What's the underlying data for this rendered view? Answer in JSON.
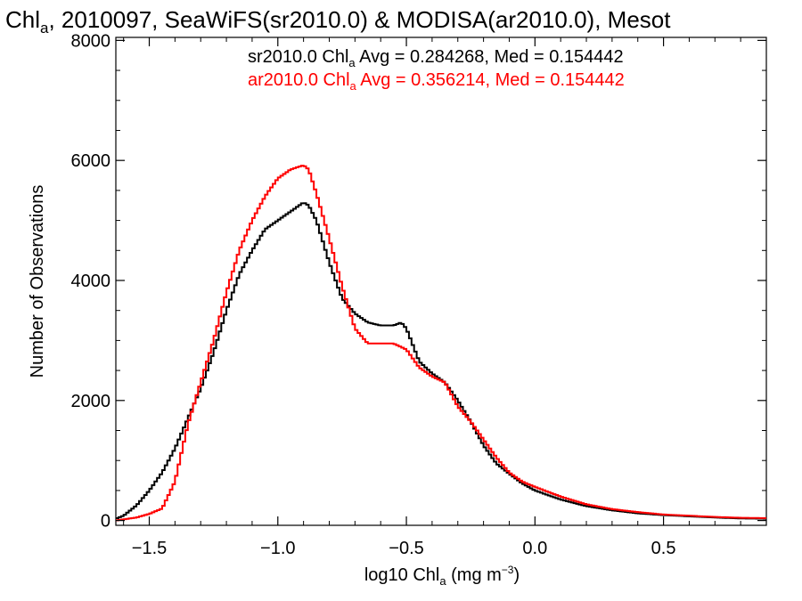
{
  "chart_data": {
    "type": "line",
    "title": {
      "pre": "Chl",
      "sub": "a",
      "post": ", 2010097, SeaWiFS(sr2010.0) & MODISA(ar2010.0), Mesot"
    },
    "xlabel": {
      "pre": "log10 Chl",
      "sub": "a",
      "mid": " (mg m",
      "sup": "−3",
      "post": ")"
    },
    "ylabel": "Number of Observations",
    "xlim": [
      -1.63,
      0.9
    ],
    "ylim": [
      -80,
      8050
    ],
    "x_ticks": [
      {
        "value": -1.5,
        "label": "−1.5"
      },
      {
        "value": -1.0,
        "label": "−1.0"
      },
      {
        "value": -0.5,
        "label": "−0.5"
      },
      {
        "value": 0.0,
        "label": "0.0"
      },
      {
        "value": 0.5,
        "label": "0.5"
      }
    ],
    "y_ticks": [
      {
        "value": 0,
        "label": "0"
      },
      {
        "value": 2000,
        "label": "2000"
      },
      {
        "value": 4000,
        "label": "4000"
      },
      {
        "value": 6000,
        "label": "6000"
      },
      {
        "value": 8000,
        "label": "8000"
      }
    ],
    "grid": false,
    "legend_position": "top-right",
    "series": [
      {
        "name": "sr2010.0",
        "color": "#000000",
        "legend": {
          "pre": "sr2010.0 Chl",
          "sub": "a",
          "post": " Avg = 0.284268, Med = 0.154442"
        },
        "x": [
          -1.63,
          -1.6,
          -1.55,
          -1.5,
          -1.45,
          -1.4,
          -1.35,
          -1.3,
          -1.25,
          -1.2,
          -1.15,
          -1.1,
          -1.05,
          -1.0,
          -0.95,
          -0.9,
          -0.88,
          -0.85,
          -0.8,
          -0.75,
          -0.7,
          -0.65,
          -0.6,
          -0.55,
          -0.52,
          -0.5,
          -0.45,
          -0.4,
          -0.35,
          -0.3,
          -0.25,
          -0.2,
          -0.15,
          -0.1,
          -0.05,
          0.0,
          0.1,
          0.2,
          0.3,
          0.4,
          0.5,
          0.6,
          0.7,
          0.8,
          0.9
        ],
        "y": [
          30,
          80,
          250,
          500,
          800,
          1200,
          1700,
          2200,
          2800,
          3500,
          4100,
          4500,
          4850,
          5000,
          5150,
          5300,
          5250,
          5000,
          4300,
          3700,
          3450,
          3300,
          3250,
          3250,
          3300,
          3200,
          2650,
          2450,
          2300,
          2000,
          1650,
          1250,
          950,
          780,
          620,
          500,
          350,
          240,
          170,
          120,
          90,
          70,
          50,
          35,
          30
        ]
      },
      {
        "name": "ar2010.0",
        "color": "#ff0000",
        "legend": {
          "pre": "ar2010.0 Chl",
          "sub": "a",
          "post": " Avg = 0.356214, Med = 0.154442"
        },
        "x": [
          -1.63,
          -1.55,
          -1.5,
          -1.45,
          -1.4,
          -1.35,
          -1.3,
          -1.25,
          -1.2,
          -1.15,
          -1.1,
          -1.05,
          -1.0,
          -0.95,
          -0.9,
          -0.88,
          -0.85,
          -0.8,
          -0.75,
          -0.7,
          -0.65,
          -0.6,
          -0.55,
          -0.5,
          -0.45,
          -0.4,
          -0.35,
          -0.3,
          -0.25,
          -0.2,
          -0.15,
          -0.1,
          -0.05,
          0.0,
          0.1,
          0.2,
          0.3,
          0.4,
          0.5,
          0.6,
          0.7,
          0.8,
          0.9
        ],
        "y": [
          0,
          50,
          110,
          200,
          650,
          1600,
          2300,
          3000,
          3800,
          4500,
          5000,
          5400,
          5700,
          5850,
          5920,
          5850,
          5450,
          4700,
          3900,
          3200,
          2950,
          2950,
          2950,
          2850,
          2550,
          2400,
          2300,
          1900,
          1650,
          1350,
          1050,
          800,
          650,
          560,
          400,
          270,
          190,
          140,
          100,
          80,
          60,
          45,
          40
        ]
      }
    ]
  }
}
